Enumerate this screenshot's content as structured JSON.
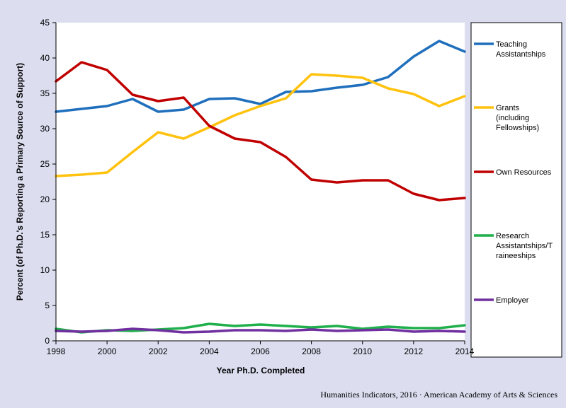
{
  "chart_data": {
    "type": "line",
    "title": "",
    "xlabel": "Year Ph.D. Completed",
    "ylabel": "Percent (of Ph.D.'s Reporting a Primary Source of Support)",
    "xlim": [
      1998,
      2014
    ],
    "ylim": [
      0,
      45
    ],
    "x_ticks": [
      1998,
      2000,
      2002,
      2004,
      2006,
      2008,
      2010,
      2012,
      2014
    ],
    "y_ticks": [
      0,
      5,
      10,
      15,
      20,
      25,
      30,
      35,
      40,
      45
    ],
    "grid": false,
    "legend_position": "right",
    "x": [
      1998,
      1999,
      2000,
      2001,
      2002,
      2003,
      2004,
      2005,
      2006,
      2007,
      2008,
      2009,
      2010,
      2011,
      2012,
      2013,
      2014
    ],
    "series": [
      {
        "name": "Teaching Assistantships",
        "legend_lines": [
          "Teaching",
          "Assistantships"
        ],
        "color": "#1f6fbd",
        "values": [
          32.4,
          32.8,
          33.2,
          34.2,
          32.4,
          32.7,
          34.2,
          34.3,
          33.5,
          35.2,
          35.3,
          35.8,
          36.2,
          37.3,
          40.2,
          42.4,
          40.9
        ]
      },
      {
        "name": "Grants (including Fellowships)",
        "legend_lines": [
          "Grants",
          "(including",
          "Fellowships)"
        ],
        "color": "#ffc20e",
        "values": [
          23.3,
          23.5,
          23.8,
          26.7,
          29.5,
          28.6,
          30.2,
          31.9,
          33.2,
          34.3,
          37.7,
          37.5,
          37.2,
          35.7,
          34.9,
          33.2,
          34.6
        ]
      },
      {
        "name": "Own Resources",
        "legend_lines": [
          "Own Resources"
        ],
        "color": "#c00000",
        "values": [
          36.7,
          39.4,
          38.3,
          34.8,
          33.9,
          34.4,
          30.4,
          28.6,
          28.1,
          26.0,
          22.8,
          22.4,
          22.7,
          22.7,
          20.8,
          19.9,
          20.2
        ]
      },
      {
        "name": "Research Assistantships/Traineeships",
        "legend_lines": [
          "Research",
          "Assistantships/T",
          "raineeships"
        ],
        "color": "#1faf4b",
        "values": [
          1.7,
          1.2,
          1.5,
          1.4,
          1.6,
          1.8,
          2.4,
          2.1,
          2.3,
          2.1,
          1.9,
          2.1,
          1.7,
          2.0,
          1.8,
          1.8,
          2.2
        ]
      },
      {
        "name": "Employer",
        "legend_lines": [
          "Employer"
        ],
        "color": "#7030a0",
        "values": [
          1.4,
          1.3,
          1.4,
          1.7,
          1.5,
          1.2,
          1.3,
          1.5,
          1.5,
          1.4,
          1.6,
          1.4,
          1.5,
          1.6,
          1.3,
          1.4,
          1.3
        ]
      }
    ]
  },
  "footer": {
    "credit": "Humanities Indicators, 2016 · American Academy of Arts & Sciences"
  }
}
